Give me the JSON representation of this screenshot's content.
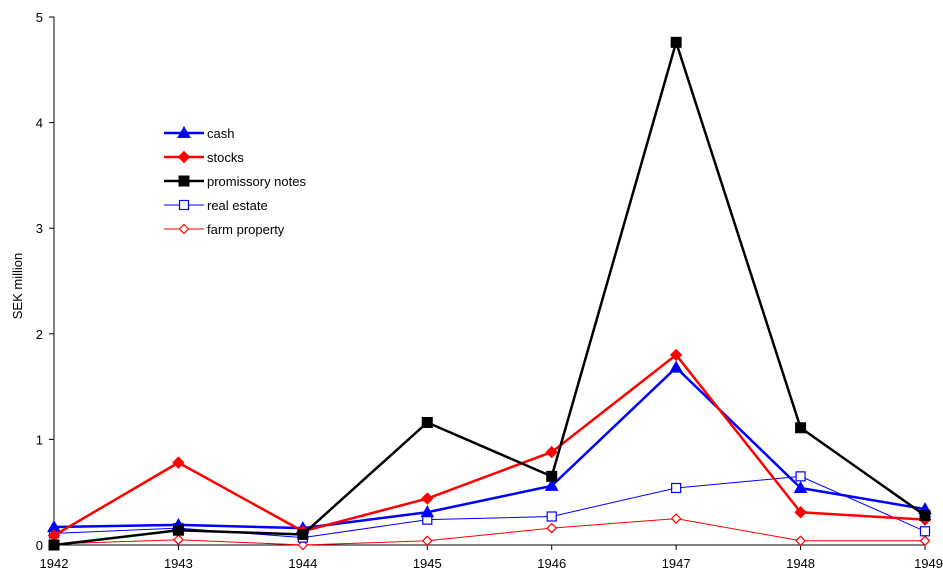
{
  "chart_data": {
    "type": "line",
    "title": "",
    "xlabel": "",
    "ylabel": "SEK million",
    "categories": [
      "1942",
      "1943",
      "1944",
      "1945",
      "1946",
      "1947",
      "1948",
      "1949"
    ],
    "ylim": [
      0,
      5
    ],
    "yticks": [
      "0",
      "1",
      "2",
      "3",
      "4",
      "5"
    ],
    "legend_position": "upper-left",
    "series": [
      {
        "name": "cash",
        "values": [
          0.17,
          0.19,
          0.16,
          0.31,
          0.56,
          1.68,
          0.54,
          0.34
        ],
        "color": "#0000ff",
        "marker": "triangle",
        "filled": true,
        "weight": "bold"
      },
      {
        "name": "stocks",
        "values": [
          0.09,
          0.78,
          0.13,
          0.44,
          0.88,
          1.8,
          0.31,
          0.24
        ],
        "color": "#ff0000",
        "marker": "diamond",
        "filled": true,
        "weight": "bold"
      },
      {
        "name": "promissory notes",
        "values": [
          0.0,
          0.14,
          0.1,
          1.16,
          0.65,
          4.76,
          1.11,
          0.28
        ],
        "color": "#000000",
        "marker": "square",
        "filled": true,
        "weight": "bold"
      },
      {
        "name": "real estate",
        "values": [
          0.11,
          0.16,
          0.07,
          0.24,
          0.27,
          0.54,
          0.65,
          0.13
        ],
        "color": "#0000ff",
        "marker": "square",
        "filled": false,
        "weight": "thin"
      },
      {
        "name": "farm property",
        "values": [
          0.01,
          0.05,
          0.0,
          0.04,
          0.16,
          0.25,
          0.04,
          0.04
        ],
        "color": "#ff0000",
        "marker": "diamond",
        "filled": false,
        "weight": "thin"
      }
    ]
  }
}
